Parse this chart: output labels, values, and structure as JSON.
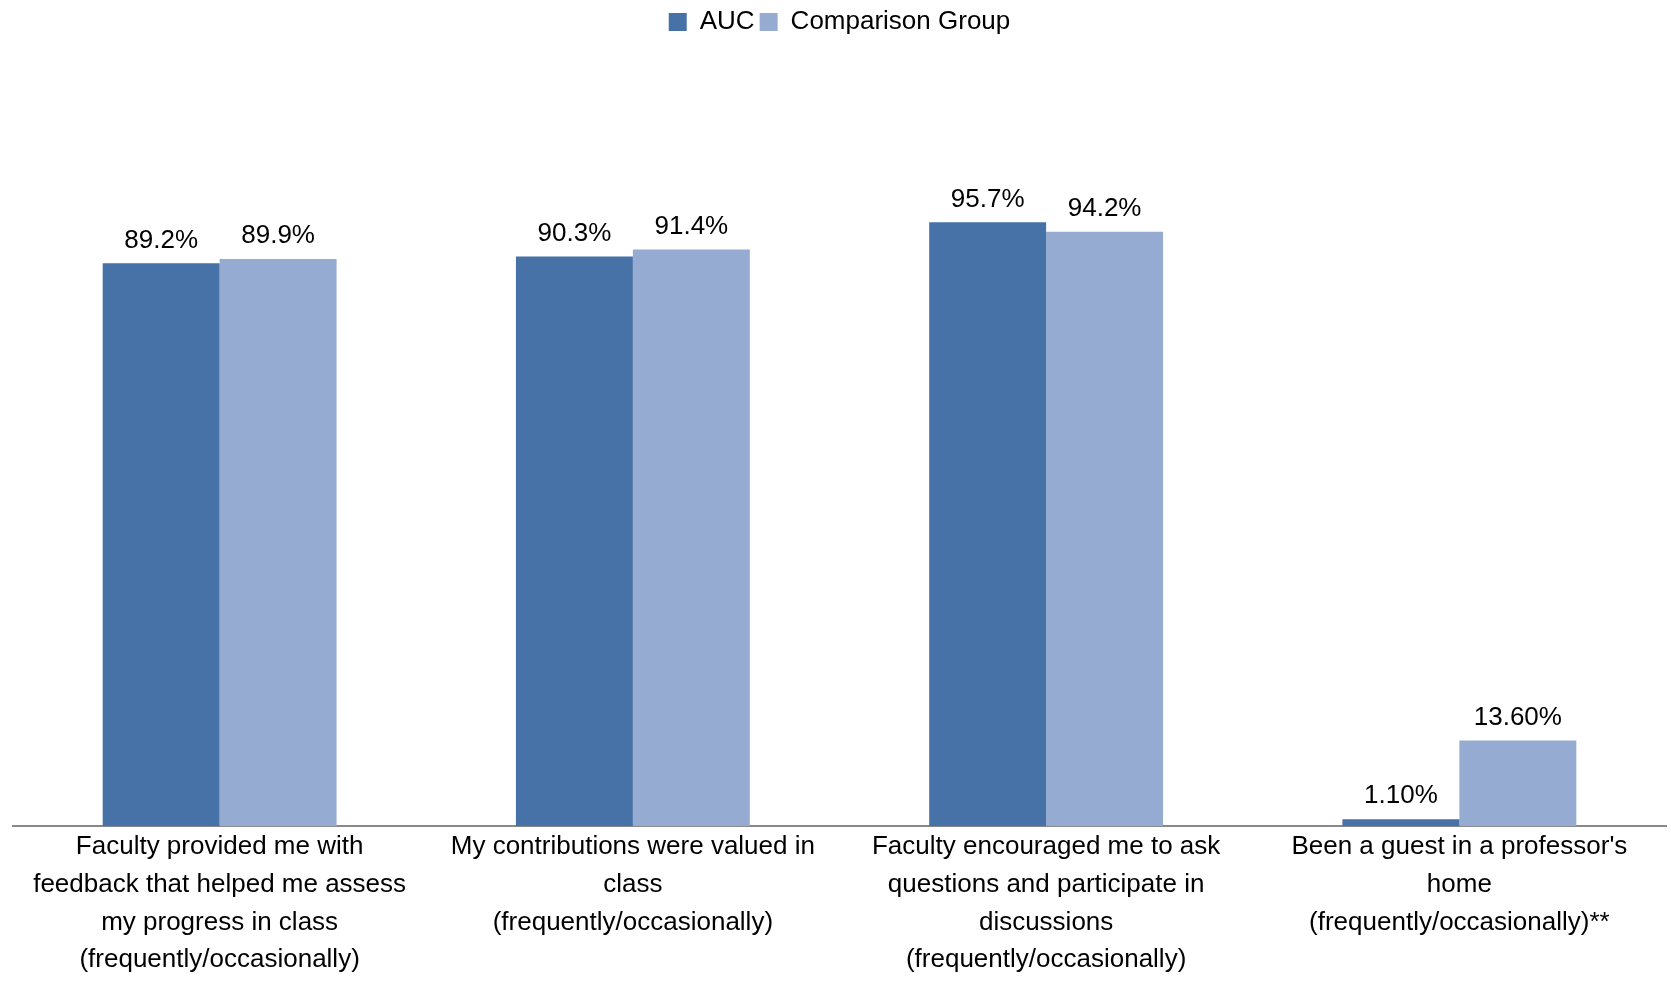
{
  "chart_data": {
    "type": "bar",
    "categories": [
      "Faculty provided me with feedback that helped me assess my progress in class (frequently/occasionally)",
      "My contributions were valued in class (frequently/occasionally)",
      "Faculty encouraged me to ask questions and participate in discussions (frequently/occasionally)",
      "Been a guest in a professor's home (frequently/occasionally)**"
    ],
    "series": [
      {
        "name": "AUC",
        "color": "#4672a8",
        "values": [
          89.2,
          90.3,
          95.7,
          1.1
        ],
        "value_labels": [
          "89.2%",
          "90.3%",
          "95.7%",
          "1.10%"
        ]
      },
      {
        "name": "Comparison Group",
        "color": "#95abd1",
        "values": [
          89.9,
          91.4,
          94.2,
          13.6
        ],
        "value_labels": [
          "89.9%",
          "91.4%",
          "94.2%",
          "13.60%"
        ]
      }
    ],
    "legend": "top",
    "grid": false
  }
}
